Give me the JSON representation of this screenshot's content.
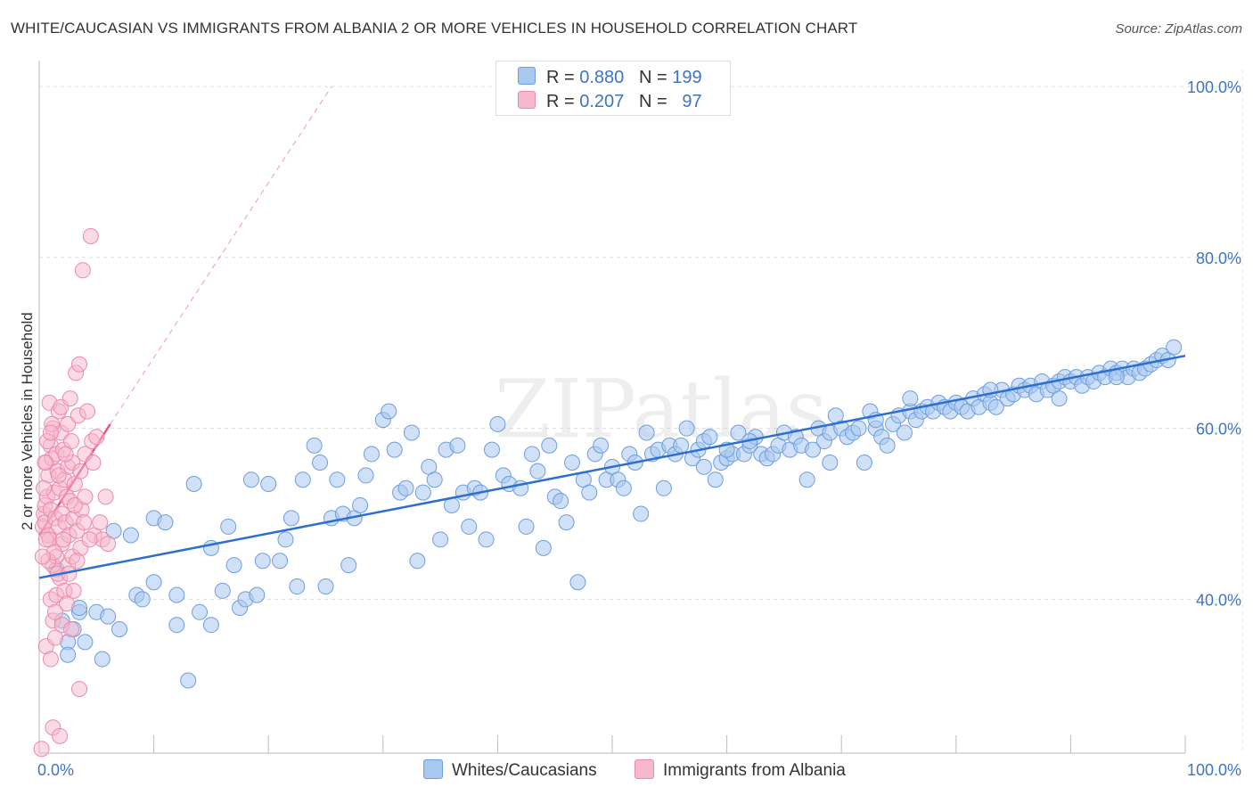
{
  "title": "WHITE/CAUCASIAN VS IMMIGRANTS FROM ALBANIA 2 OR MORE VEHICLES IN HOUSEHOLD CORRELATION CHART",
  "source": "Source: ZipAtlas.com",
  "watermark": "ZIPatlas",
  "colors": {
    "blue_fill": "#a9c8f0",
    "blue_stroke": "#6c9ee0",
    "blue_line": "#2d6fd0",
    "pink_fill": "#f6b8cc",
    "pink_stroke": "#ec8aaa",
    "pink_line": "#e8537f",
    "tick_text": "#3d74c4"
  },
  "legend_top": {
    "rows": [
      {
        "r_label": "R =",
        "r_value": "0.880",
        "n_label": "N =",
        "n_value": "199"
      },
      {
        "r_label": "R =",
        "r_value": "0.207",
        "n_label": "N =",
        "n_value": "97"
      }
    ]
  },
  "legend_bottom": {
    "items": [
      "Whites/Caucasians",
      "Immigrants from Albania"
    ]
  },
  "chart_data": {
    "type": "scatter",
    "xlabel": "",
    "ylabel": "2 or more Vehicles in Household",
    "xlim": [
      0,
      100
    ],
    "ylim": [
      22,
      102
    ],
    "x_tick_labels": [
      "0.0%",
      "100.0%"
    ],
    "y_ticks": [
      40,
      60,
      80,
      100
    ],
    "y_tick_labels": [
      "40.0%",
      "60.0%",
      "80.0%",
      "100.0%"
    ],
    "grid": true,
    "series": [
      {
        "name": "Whites/Caucasians",
        "color": "#a9c8f0",
        "R": 0.88,
        "N": 199,
        "trend": {
          "x": [
            0,
            100
          ],
          "y": [
            42.5,
            68.5
          ]
        },
        "points": [
          [
            1.5,
            43.5
          ],
          [
            2.0,
            37.5
          ],
          [
            2.5,
            35.0
          ],
          [
            2.5,
            33.5
          ],
          [
            3.0,
            36.5
          ],
          [
            3.5,
            38.5
          ],
          [
            3.5,
            39.0
          ],
          [
            4.0,
            35.0
          ],
          [
            5.0,
            38.5
          ],
          [
            5.5,
            33.0
          ],
          [
            6.0,
            38.0
          ],
          [
            6.5,
            48.0
          ],
          [
            7.0,
            36.5
          ],
          [
            8.0,
            47.5
          ],
          [
            8.5,
            40.5
          ],
          [
            9.0,
            40.0
          ],
          [
            10.0,
            42.0
          ],
          [
            10.0,
            49.5
          ],
          [
            11.0,
            49.0
          ],
          [
            12.0,
            37.0
          ],
          [
            12.0,
            40.5
          ],
          [
            13.0,
            30.5
          ],
          [
            13.5,
            53.5
          ],
          [
            14.0,
            38.5
          ],
          [
            15.0,
            37.0
          ],
          [
            15.0,
            46.0
          ],
          [
            16.0,
            41.0
          ],
          [
            16.5,
            48.5
          ],
          [
            17.0,
            44.0
          ],
          [
            17.5,
            39.0
          ],
          [
            18.0,
            40.0
          ],
          [
            18.5,
            54.0
          ],
          [
            19.0,
            40.5
          ],
          [
            19.5,
            44.5
          ],
          [
            20.0,
            53.5
          ],
          [
            21.0,
            44.5
          ],
          [
            21.5,
            47.0
          ],
          [
            22.0,
            49.5
          ],
          [
            22.5,
            41.5
          ],
          [
            23.0,
            54.0
          ],
          [
            24.0,
            58.0
          ],
          [
            24.5,
            56.0
          ],
          [
            25.0,
            41.5
          ],
          [
            25.5,
            49.5
          ],
          [
            26.0,
            54.0
          ],
          [
            26.5,
            50.0
          ],
          [
            27.0,
            44.0
          ],
          [
            27.5,
            49.5
          ],
          [
            28.0,
            51.0
          ],
          [
            28.5,
            54.5
          ],
          [
            29.0,
            57.0
          ],
          [
            30.0,
            61.0
          ],
          [
            30.5,
            62.0
          ],
          [
            31.0,
            57.5
          ],
          [
            31.5,
            52.5
          ],
          [
            32.0,
            53.0
          ],
          [
            32.5,
            59.5
          ],
          [
            33.0,
            44.5
          ],
          [
            33.5,
            52.5
          ],
          [
            34.0,
            55.5
          ],
          [
            34.5,
            54.0
          ],
          [
            35.0,
            47.0
          ],
          [
            35.5,
            57.5
          ],
          [
            36.0,
            51.0
          ],
          [
            36.5,
            58.0
          ],
          [
            37.0,
            52.5
          ],
          [
            37.5,
            48.5
          ],
          [
            38.0,
            53.0
          ],
          [
            38.5,
            52.5
          ],
          [
            39.0,
            47.0
          ],
          [
            39.5,
            57.5
          ],
          [
            40.0,
            60.5
          ],
          [
            40.5,
            54.5
          ],
          [
            41.0,
            53.5
          ],
          [
            42.0,
            53.0
          ],
          [
            42.5,
            48.5
          ],
          [
            43.0,
            57.0
          ],
          [
            43.5,
            55.0
          ],
          [
            44.0,
            46.0
          ],
          [
            44.5,
            58.0
          ],
          [
            45.0,
            52.0
          ],
          [
            45.5,
            51.5
          ],
          [
            46.0,
            49.0
          ],
          [
            46.5,
            56.0
          ],
          [
            47.0,
            42.0
          ],
          [
            47.5,
            54.0
          ],
          [
            48.0,
            52.5
          ],
          [
            48.5,
            57.0
          ],
          [
            49.0,
            58.0
          ],
          [
            49.5,
            54.0
          ],
          [
            50.0,
            55.5
          ],
          [
            50.5,
            54.0
          ],
          [
            51.0,
            53.0
          ],
          [
            51.5,
            57.0
          ],
          [
            52.0,
            56.0
          ],
          [
            52.5,
            50.0
          ],
          [
            53.0,
            59.5
          ],
          [
            53.5,
            57.0
          ],
          [
            54.0,
            57.5
          ],
          [
            54.5,
            53.0
          ],
          [
            55.0,
            58.0
          ],
          [
            55.5,
            57.0
          ],
          [
            56.0,
            58.0
          ],
          [
            56.5,
            60.0
          ],
          [
            57.0,
            56.5
          ],
          [
            57.5,
            57.5
          ],
          [
            58.0,
            58.5
          ],
          [
            58.5,
            59.0
          ],
          [
            59.0,
            54.0
          ],
          [
            59.5,
            56.0
          ],
          [
            60.0,
            56.5
          ],
          [
            60.5,
            57.0
          ],
          [
            61.0,
            59.5
          ],
          [
            61.5,
            57.0
          ],
          [
            62.0,
            58.0
          ],
          [
            62.5,
            59.0
          ],
          [
            63.0,
            57.0
          ],
          [
            63.5,
            56.5
          ],
          [
            64.0,
            57.0
          ],
          [
            64.5,
            58.0
          ],
          [
            65.0,
            59.5
          ],
          [
            65.5,
            57.5
          ],
          [
            66.0,
            59.0
          ],
          [
            66.5,
            58.0
          ],
          [
            67.0,
            54.0
          ],
          [
            67.5,
            57.5
          ],
          [
            68.0,
            60.0
          ],
          [
            68.5,
            58.5
          ],
          [
            69.0,
            59.5
          ],
          [
            69.5,
            61.5
          ],
          [
            70.0,
            60.0
          ],
          [
            70.5,
            59.0
          ],
          [
            71.0,
            59.5
          ],
          [
            71.5,
            60.0
          ],
          [
            72.0,
            56.0
          ],
          [
            72.5,
            62.0
          ],
          [
            73.0,
            60.0
          ],
          [
            73.5,
            59.0
          ],
          [
            74.0,
            58.0
          ],
          [
            74.5,
            60.5
          ],
          [
            75.0,
            61.5
          ],
          [
            75.5,
            59.5
          ],
          [
            76.0,
            62.0
          ],
          [
            76.5,
            61.0
          ],
          [
            77.0,
            62.0
          ],
          [
            77.5,
            62.5
          ],
          [
            78.0,
            62.0
          ],
          [
            78.5,
            63.0
          ],
          [
            79.0,
            62.5
          ],
          [
            79.5,
            62.0
          ],
          [
            80.0,
            63.0
          ],
          [
            80.5,
            62.5
          ],
          [
            81.0,
            62.0
          ],
          [
            81.5,
            63.5
          ],
          [
            82.0,
            62.5
          ],
          [
            82.5,
            64.0
          ],
          [
            83.0,
            63.0
          ],
          [
            83.5,
            62.5
          ],
          [
            84.0,
            64.5
          ],
          [
            84.5,
            63.5
          ],
          [
            85.0,
            64.0
          ],
          [
            85.5,
            65.0
          ],
          [
            86.0,
            64.5
          ],
          [
            86.5,
            65.0
          ],
          [
            87.0,
            64.0
          ],
          [
            87.5,
            65.5
          ],
          [
            88.0,
            64.5
          ],
          [
            88.5,
            65.0
          ],
          [
            89.0,
            65.5
          ],
          [
            89.5,
            66.0
          ],
          [
            90.0,
            65.5
          ],
          [
            90.5,
            66.0
          ],
          [
            91.0,
            65.0
          ],
          [
            91.5,
            66.0
          ],
          [
            92.0,
            65.5
          ],
          [
            92.5,
            66.5
          ],
          [
            93.0,
            66.0
          ],
          [
            93.5,
            67.0
          ],
          [
            94.0,
            66.5
          ],
          [
            94.5,
            67.0
          ],
          [
            95.0,
            66.0
          ],
          [
            95.5,
            67.0
          ],
          [
            96.0,
            66.5
          ],
          [
            96.5,
            67.0
          ],
          [
            97.0,
            67.5
          ],
          [
            97.5,
            68.0
          ],
          [
            98.0,
            68.5
          ],
          [
            98.5,
            68.0
          ],
          [
            99.0,
            69.5
          ],
          [
            62.0,
            58.5
          ],
          [
            60.0,
            57.5
          ],
          [
            58.0,
            55.5
          ],
          [
            69.0,
            56.0
          ],
          [
            73.0,
            61.0
          ],
          [
            76.0,
            63.5
          ],
          [
            83.0,
            64.5
          ],
          [
            89.0,
            63.5
          ],
          [
            94.0,
            66.0
          ]
        ]
      },
      {
        "name": "Immigrants from Albania",
        "color": "#f6b8cc",
        "R": 0.207,
        "N": 97,
        "trend": {
          "x": [
            0,
            6.2
          ],
          "y": [
            47.5,
            60.5
          ]
        },
        "trend_extension": {
          "x": [
            6.2,
            25.5
          ],
          "y": [
            60.5,
            100
          ]
        },
        "points": [
          [
            0.2,
            22.5
          ],
          [
            0.3,
            48.5
          ],
          [
            0.4,
            50.0
          ],
          [
            0.5,
            51.0
          ],
          [
            0.5,
            49.0
          ],
          [
            0.6,
            56.0
          ],
          [
            0.7,
            52.0
          ],
          [
            0.8,
            54.5
          ],
          [
            0.8,
            47.5
          ],
          [
            0.9,
            63.0
          ],
          [
            1.0,
            58.0
          ],
          [
            1.0,
            50.5
          ],
          [
            1.1,
            56.5
          ],
          [
            1.2,
            44.0
          ],
          [
            1.2,
            60.0
          ],
          [
            1.3,
            52.5
          ],
          [
            1.4,
            49.5
          ],
          [
            1.5,
            57.0
          ],
          [
            1.5,
            45.0
          ],
          [
            1.6,
            55.0
          ],
          [
            1.7,
            62.0
          ],
          [
            1.7,
            48.5
          ],
          [
            1.8,
            53.0
          ],
          [
            1.9,
            59.5
          ],
          [
            2.0,
            50.0
          ],
          [
            2.0,
            46.5
          ],
          [
            2.1,
            57.5
          ],
          [
            2.2,
            54.0
          ],
          [
            2.3,
            49.0
          ],
          [
            2.4,
            52.0
          ],
          [
            2.5,
            60.5
          ],
          [
            2.5,
            55.5
          ],
          [
            2.6,
            47.5
          ],
          [
            2.7,
            51.5
          ],
          [
            2.8,
            58.5
          ],
          [
            2.9,
            56.0
          ],
          [
            3.0,
            49.5
          ],
          [
            3.1,
            53.5
          ],
          [
            3.2,
            66.5
          ],
          [
            3.3,
            48.0
          ],
          [
            3.4,
            61.5
          ],
          [
            3.5,
            67.5
          ],
          [
            3.6,
            55.0
          ],
          [
            3.7,
            50.5
          ],
          [
            3.8,
            78.5
          ],
          [
            4.0,
            57.0
          ],
          [
            4.0,
            52.0
          ],
          [
            4.2,
            62.0
          ],
          [
            4.5,
            82.5
          ],
          [
            4.6,
            58.5
          ],
          [
            4.8,
            47.5
          ],
          [
            5.0,
            59.0
          ],
          [
            5.3,
            49.0
          ],
          [
            5.5,
            47.0
          ],
          [
            5.8,
            52.0
          ],
          [
            6.0,
            46.5
          ],
          [
            1.0,
            40.0
          ],
          [
            1.2,
            37.5
          ],
          [
            1.5,
            40.5
          ],
          [
            1.8,
            42.5
          ],
          [
            2.0,
            37.0
          ],
          [
            2.2,
            41.0
          ],
          [
            2.5,
            44.0
          ],
          [
            2.8,
            36.5
          ],
          [
            3.0,
            41.0
          ],
          [
            0.6,
            34.5
          ],
          [
            1.0,
            33.0
          ],
          [
            1.4,
            35.5
          ],
          [
            3.5,
            29.5
          ],
          [
            1.2,
            25.0
          ],
          [
            1.8,
            24.0
          ],
          [
            0.8,
            44.5
          ],
          [
            1.6,
            43.0
          ],
          [
            2.4,
            39.5
          ],
          [
            0.4,
            53.0
          ],
          [
            0.7,
            58.5
          ],
          [
            1.1,
            60.5
          ],
          [
            1.9,
            62.5
          ],
          [
            2.7,
            63.5
          ],
          [
            0.9,
            47.0
          ],
          [
            1.3,
            45.5
          ],
          [
            2.1,
            47.0
          ],
          [
            2.9,
            45.0
          ],
          [
            3.6,
            46.0
          ],
          [
            4.4,
            47.0
          ],
          [
            0.5,
            56.0
          ],
          [
            1.0,
            59.5
          ],
          [
            1.7,
            54.5
          ],
          [
            2.3,
            57.0
          ],
          [
            3.1,
            51.0
          ],
          [
            3.9,
            49.0
          ],
          [
            4.7,
            56.0
          ],
          [
            0.3,
            45.0
          ],
          [
            0.6,
            47.0
          ],
          [
            2.6,
            43.0
          ],
          [
            3.3,
            44.5
          ],
          [
            1.4,
            38.5
          ]
        ]
      }
    ]
  }
}
